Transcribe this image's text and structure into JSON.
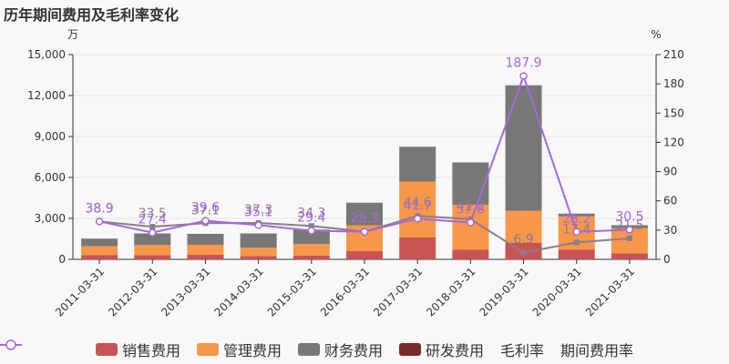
{
  "title": "历年期间费用及毛利率变化",
  "chart_data": {
    "type": "bar",
    "stacked": true,
    "categories": [
      "2011-03-31",
      "2012-03-31",
      "2013-03-31",
      "2014-03-31",
      "2015-03-31",
      "2016-03-31",
      "2017-03-31",
      "2018-03-31",
      "2019-03-31",
      "2020-03-31",
      "2021-03-31"
    ],
    "left_axis": {
      "unit": "万",
      "min": 0,
      "max": 15000,
      "ticks": [
        0,
        3000,
        6000,
        9000,
        12000,
        15000
      ],
      "tick_labels": [
        "0",
        "3,000",
        "6,000",
        "9,000",
        "12,000",
        "15,000"
      ]
    },
    "right_axis": {
      "unit": "%",
      "min": 0,
      "max": 210,
      "ticks": [
        0,
        30,
        60,
        90,
        120,
        150,
        180,
        210
      ],
      "tick_labels": [
        "0",
        "30",
        "60",
        "90",
        "120",
        "150",
        "180",
        "210"
      ]
    },
    "bar_series": [
      {
        "name": "销售费用",
        "color": "#c85454",
        "values": [
          320,
          300,
          350,
          250,
          280,
          600,
          1600,
          700,
          1200,
          700,
          450
        ]
      },
      {
        "name": "管理费用",
        "color": "#f7974a",
        "values": [
          650,
          750,
          720,
          600,
          850,
          1900,
          4100,
          3300,
          2350,
          2450,
          1850
        ]
      },
      {
        "name": "财务费用",
        "color": "#777777",
        "values": [
          550,
          850,
          800,
          1050,
          1050,
          1650,
          2550,
          3100,
          9200,
          200,
          200
        ]
      },
      {
        "name": "研发费用",
        "color": "#7a2a2a",
        "values": [
          0,
          0,
          0,
          0,
          0,
          0,
          0,
          0,
          0,
          0,
          0
        ]
      }
    ],
    "line_series": [
      {
        "name": "毛利率",
        "color": "#8a7d8c",
        "values": [
          38.9,
          33.5,
          37.1,
          37.3,
          34.3,
          28.3,
          44.6,
          41.2,
          6.9,
          17.4,
          21.5
        ],
        "labels": [
          "38.9",
          "33.5",
          "37.1",
          "37.3",
          "34.3",
          "28.3",
          "44.6",
          "41.2",
          "6.9",
          "17.4",
          "21.5"
        ]
      },
      {
        "name": "期间费用率",
        "color": "#a668d8",
        "values": [
          38.9,
          27.4,
          39.6,
          35.1,
          29.4,
          28.3,
          41.7,
          37.8,
          187.9,
          28.2,
          30.5
        ],
        "labels": [
          "38.9",
          "27.4",
          "39.6",
          "35.1",
          "29.4",
          "28.3",
          "41.7",
          "37.8",
          "187.9",
          "28.2",
          "30.5"
        ]
      }
    ],
    "legend_position": "bottom",
    "grid": true
  }
}
